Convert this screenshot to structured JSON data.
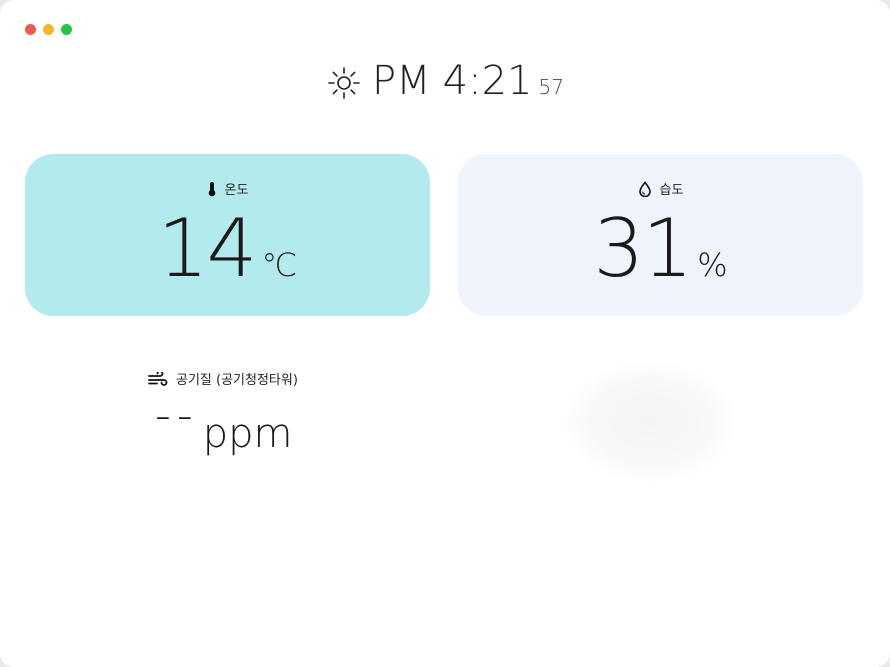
{
  "window": {
    "controls": [
      {
        "name": "close",
        "color": "#ee5a52"
      },
      {
        "name": "minimize",
        "color": "#f5b52e"
      },
      {
        "name": "maximize",
        "color": "#2bc347"
      }
    ]
  },
  "clock": {
    "icon": "sun-icon",
    "ampm": "PM",
    "time": "4:21",
    "seconds": "57"
  },
  "temperature": {
    "icon": "thermometer-icon",
    "label": "온도",
    "value": "14",
    "unit": "℃",
    "bg_color": "#b3eaed"
  },
  "humidity": {
    "icon": "droplet-icon",
    "label": "습도",
    "value": "31",
    "unit": "%",
    "bg_color": "#eff4fd"
  },
  "air_quality": {
    "icon": "wind-icon",
    "label": "공기질 (공기청정타워)",
    "value": "--",
    "unit": "ppm"
  }
}
